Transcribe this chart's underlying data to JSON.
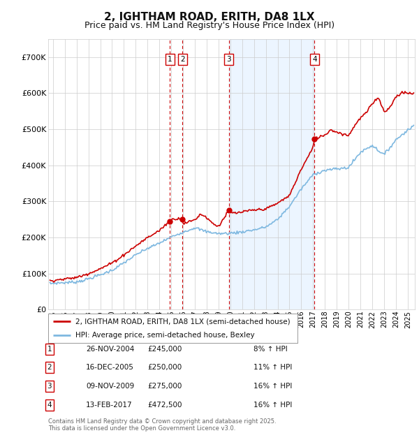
{
  "title": "2, IGHTHAM ROAD, ERITH, DA8 1LX",
  "subtitle": "Price paid vs. HM Land Registry's House Price Index (HPI)",
  "ylim": [
    0,
    750000
  ],
  "yticks": [
    0,
    100000,
    200000,
    300000,
    400000,
    500000,
    600000,
    700000
  ],
  "ytick_labels": [
    "£0",
    "£100K",
    "£200K",
    "£300K",
    "£400K",
    "£500K",
    "£600K",
    "£700K"
  ],
  "xlim_start": 1994.6,
  "xlim_end": 2025.6,
  "background_color": "#ffffff",
  "plot_bg_color": "#ffffff",
  "grid_color": "#cccccc",
  "hpi_line_color": "#7eb8e0",
  "price_line_color": "#cc0000",
  "sale_marker_color": "#cc0000",
  "vline_color": "#cc0000",
  "vshade_color": "#ddeeff",
  "transactions": [
    {
      "num": 1,
      "date_x": 2004.9,
      "price": 245000,
      "label": "26-NOV-2004",
      "price_label": "£245,000",
      "hpi_pct": "8%"
    },
    {
      "num": 2,
      "date_x": 2005.96,
      "price": 250000,
      "label": "16-DEC-2005",
      "price_label": "£250,000",
      "hpi_pct": "11%"
    },
    {
      "num": 3,
      "date_x": 2009.87,
      "price": 275000,
      "label": "09-NOV-2009",
      "price_label": "£275,000",
      "hpi_pct": "16%"
    },
    {
      "num": 4,
      "date_x": 2017.12,
      "price": 472500,
      "label": "13-FEB-2017",
      "price_label": "£472,500",
      "hpi_pct": "16%"
    }
  ],
  "shade_pairs": [
    [
      2009.87,
      2017.12
    ]
  ],
  "legend_line1": "2, IGHTHAM ROAD, ERITH, DA8 1LX (semi-detached house)",
  "legend_line2": "HPI: Average price, semi-detached house, Bexley",
  "footer": "Contains HM Land Registry data © Crown copyright and database right 2025.\nThis data is licensed under the Open Government Licence v3.0.",
  "title_fontsize": 11,
  "subtitle_fontsize": 9
}
